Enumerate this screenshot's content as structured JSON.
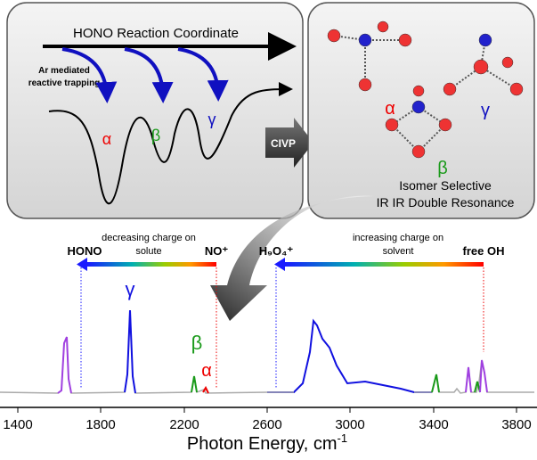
{
  "left_panel": {
    "title": "HONO Reaction Coordinate",
    "note_lines": [
      "Ar mediated",
      "reactive trapping"
    ],
    "labels": {
      "alpha": "α",
      "beta": "β",
      "gamma": "γ"
    }
  },
  "middle_arrow": {
    "label": "CIVP"
  },
  "right_panel": {
    "labels": {
      "alpha": "α",
      "beta": "β",
      "gamma": "γ"
    },
    "caption_lines": [
      "Isomer Selective",
      "IR IR Double Resonance"
    ]
  },
  "spectrum": {
    "left_arrow": {
      "start": "HONO",
      "middle_lines": [
        "decreasing charge on",
        "solute"
      ],
      "end": "NO⁺"
    },
    "right_arrow": {
      "start": "H₉O₄⁺",
      "middle_lines": [
        "increasing charge on",
        "solvent"
      ],
      "end": "free OH"
    },
    "peak_labels": {
      "gamma": "γ",
      "beta": "β",
      "alpha": "α"
    },
    "x_tick_labels": [
      "1400",
      "1800",
      "2200",
      "2600",
      "3000",
      "3400",
      "3800"
    ],
    "x_axis_title": "Photon Energy, cm",
    "x_axis_title_superscript": "-1"
  }
}
